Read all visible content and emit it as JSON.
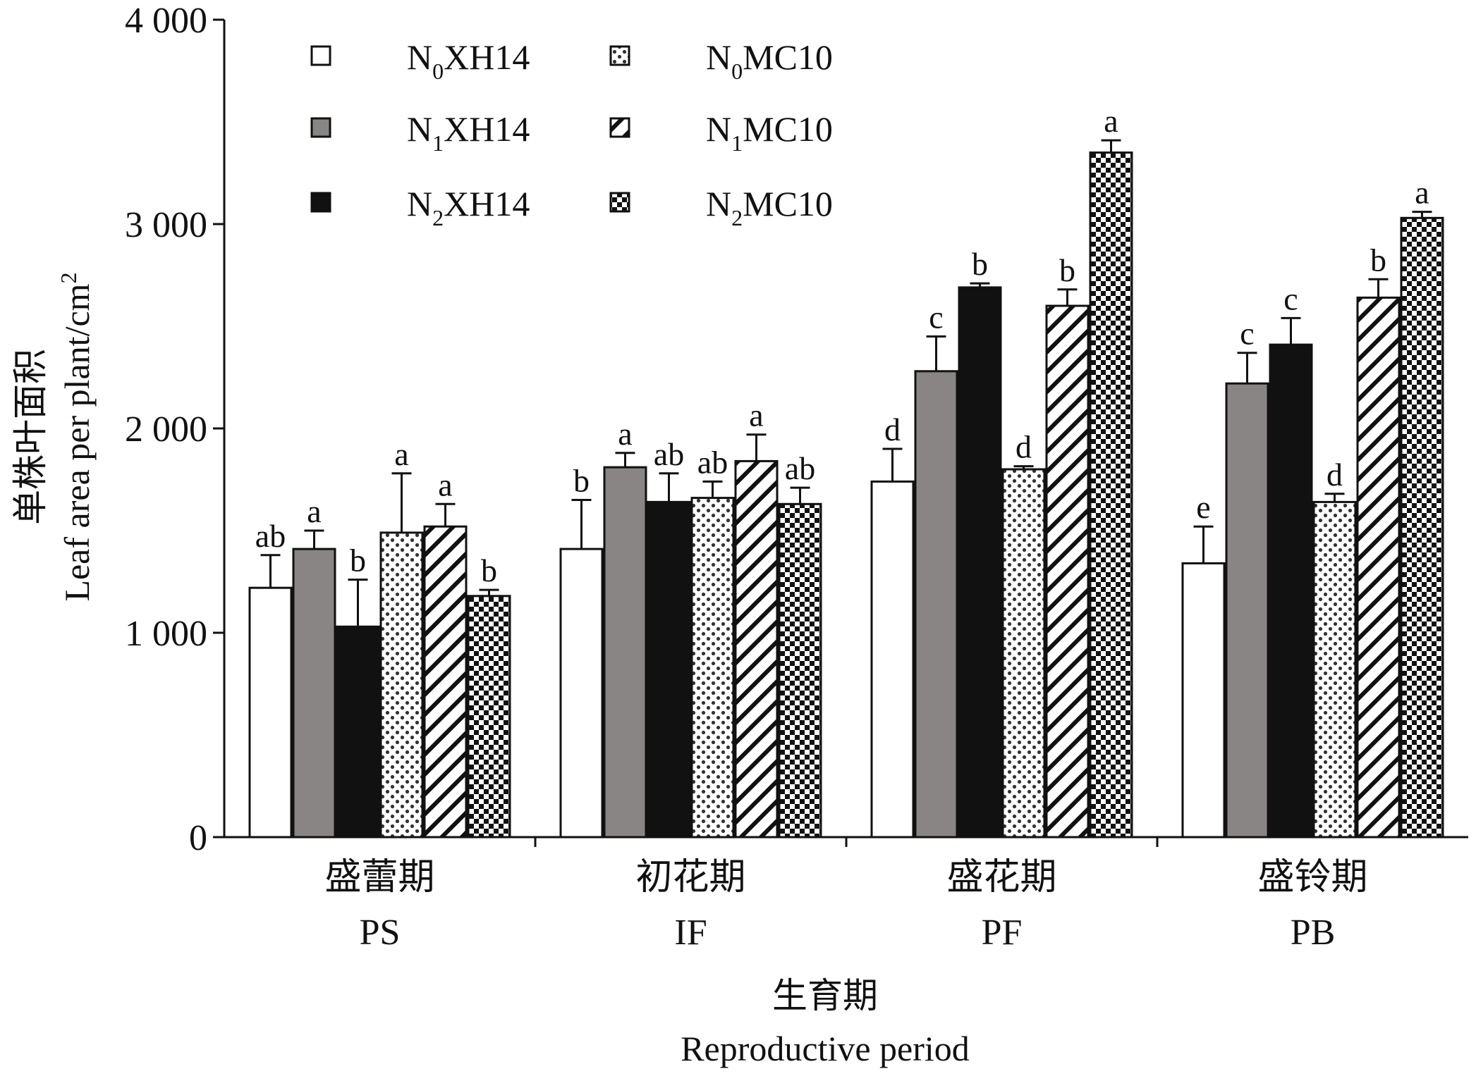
{
  "chart_data": {
    "type": "bar",
    "xlabel_cn": "生育期",
    "xlabel": "Reproductive period",
    "ylabel_cn": "单株叶面积",
    "ylabel": "Leaf area per plant/cm",
    "ylabel_sup": "2",
    "ylim": [
      0,
      4000
    ],
    "yticks": [
      {
        "value": 0,
        "label": "0"
      },
      {
        "value": 1000,
        "label": "1 000"
      },
      {
        "value": 2000,
        "label": "2 000"
      },
      {
        "value": 3000,
        "label": "3 000"
      },
      {
        "value": 4000,
        "label": "4 000"
      }
    ],
    "categories": [
      {
        "cn": "盛蕾期",
        "en": "PS"
      },
      {
        "cn": "初花期",
        "en": "IF"
      },
      {
        "cn": "盛花期",
        "en": "PF"
      },
      {
        "cn": "盛铃期",
        "en": "PB"
      }
    ],
    "legend_placement": "top-left",
    "series": [
      {
        "name": {
          "prefix": "N",
          "sub": "0",
          "suffix": "XH14"
        },
        "pattern": "white",
        "values": [
          1220,
          1410,
          1740,
          1340
        ],
        "errors": [
          160,
          240,
          160,
          180
        ],
        "labels": [
          "ab",
          "b",
          "d",
          "e"
        ]
      },
      {
        "name": {
          "prefix": "N",
          "sub": "1",
          "suffix": "XH14"
        },
        "pattern": "gray",
        "values": [
          1410,
          1810,
          2280,
          2220
        ],
        "errors": [
          90,
          70,
          170,
          150
        ],
        "labels": [
          "a",
          "a",
          "c",
          "c"
        ]
      },
      {
        "name": {
          "prefix": "N",
          "sub": "2",
          "suffix": "XH14"
        },
        "pattern": "black",
        "values": [
          1030,
          1640,
          2690,
          2410
        ],
        "errors": [
          230,
          140,
          20,
          130
        ],
        "labels": [
          "b",
          "ab",
          "b",
          "c"
        ]
      },
      {
        "name": {
          "prefix": "N",
          "sub": "0",
          "suffix": "MC10"
        },
        "pattern": "dots",
        "values": [
          1490,
          1660,
          1800,
          1640
        ],
        "errors": [
          290,
          80,
          15,
          40
        ],
        "labels": [
          "a",
          "ab",
          "d",
          "d"
        ]
      },
      {
        "name": {
          "prefix": "N",
          "sub": "1",
          "suffix": "MC10"
        },
        "pattern": "hatch",
        "values": [
          1520,
          1840,
          2600,
          2640
        ],
        "errors": [
          110,
          130,
          80,
          90
        ],
        "labels": [
          "a",
          "a",
          "b",
          "b"
        ]
      },
      {
        "name": {
          "prefix": "N",
          "sub": "2",
          "suffix": "MC10"
        },
        "pattern": "checker",
        "values": [
          1180,
          1630,
          3350,
          3030
        ],
        "errors": [
          30,
          80,
          60,
          30
        ],
        "labels": [
          "b",
          "ab",
          "a",
          "a"
        ]
      }
    ]
  }
}
